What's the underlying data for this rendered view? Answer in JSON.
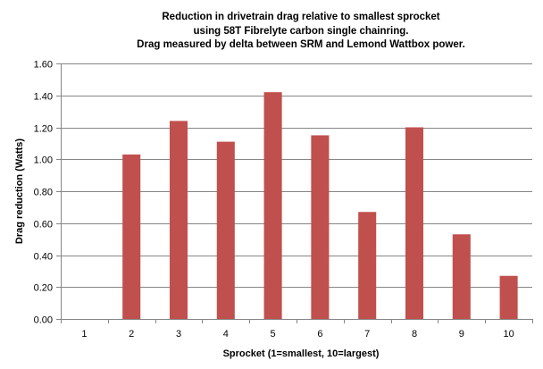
{
  "chart_data": {
    "type": "bar",
    "title": [
      "Reduction in drivetrain drag relative to smallest sprocket",
      "using 58T Fibrelyte carbon single chainring.",
      "Drag measured by delta between SRM and Lemond Wattbox power."
    ],
    "xlabel": "Sprocket (1=smallest, 10=largest)",
    "ylabel": "Drag reduction (Watts)",
    "categories": [
      "1",
      "2",
      "3",
      "4",
      "5",
      "6",
      "7",
      "8",
      "9",
      "10"
    ],
    "values": [
      0.0,
      1.03,
      1.24,
      1.11,
      1.42,
      1.15,
      0.67,
      1.2,
      0.53,
      0.27
    ],
    "ylim": [
      0,
      1.6
    ],
    "yticks": [
      "0.00",
      "0.20",
      "0.40",
      "0.60",
      "0.80",
      "1.00",
      "1.20",
      "1.40",
      "1.60"
    ],
    "ytick_values": [
      0,
      0.2,
      0.4,
      0.6,
      0.8,
      1.0,
      1.2,
      1.4,
      1.6
    ],
    "grid": true,
    "legend": "none",
    "bar_color": "#c0504d",
    "grid_color": "#868686",
    "axis_color": "#868686"
  }
}
